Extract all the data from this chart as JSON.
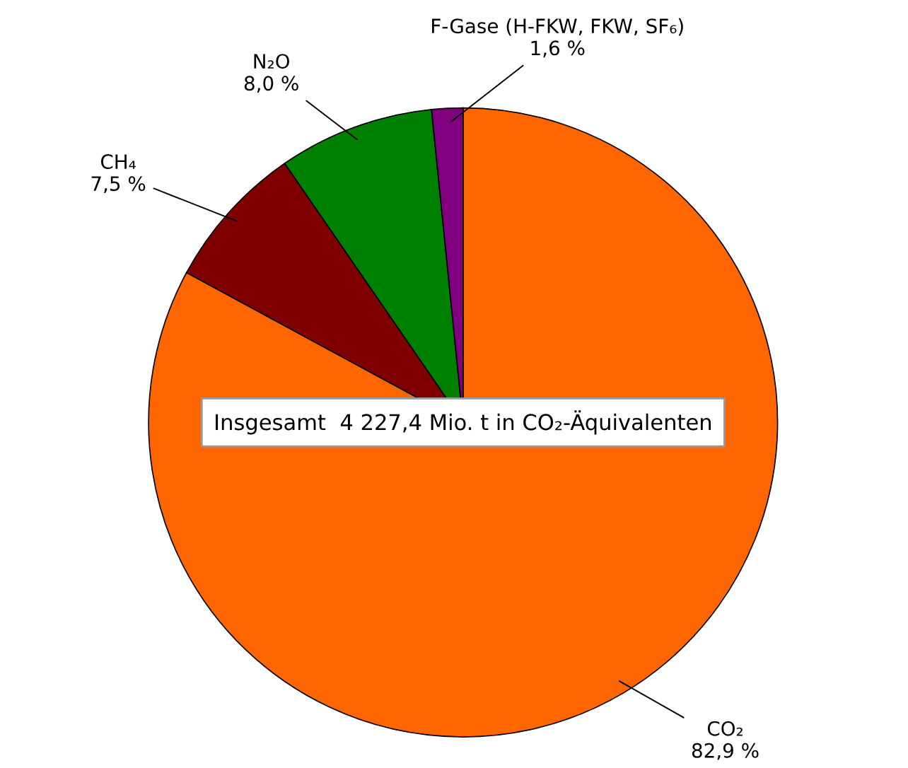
{
  "chart_data": {
    "type": "pie",
    "categories": [
      "CO₂",
      "CH₄",
      "N₂O",
      "F-Gase (H-FKW, FKW, SF₆)"
    ],
    "values": [
      82.9,
      7.5,
      8.0,
      1.6
    ],
    "colors": [
      "#ff6600",
      "#800000",
      "#008000",
      "#800080"
    ],
    "value_labels": [
      "82,9 %",
      "7,5 %",
      "8,0 %",
      "1,6 %"
    ],
    "annotations": [
      "Insgesamt  4 227,4 Mio. t in CO₂-Äquivalenten"
    ],
    "legend": false
  }
}
